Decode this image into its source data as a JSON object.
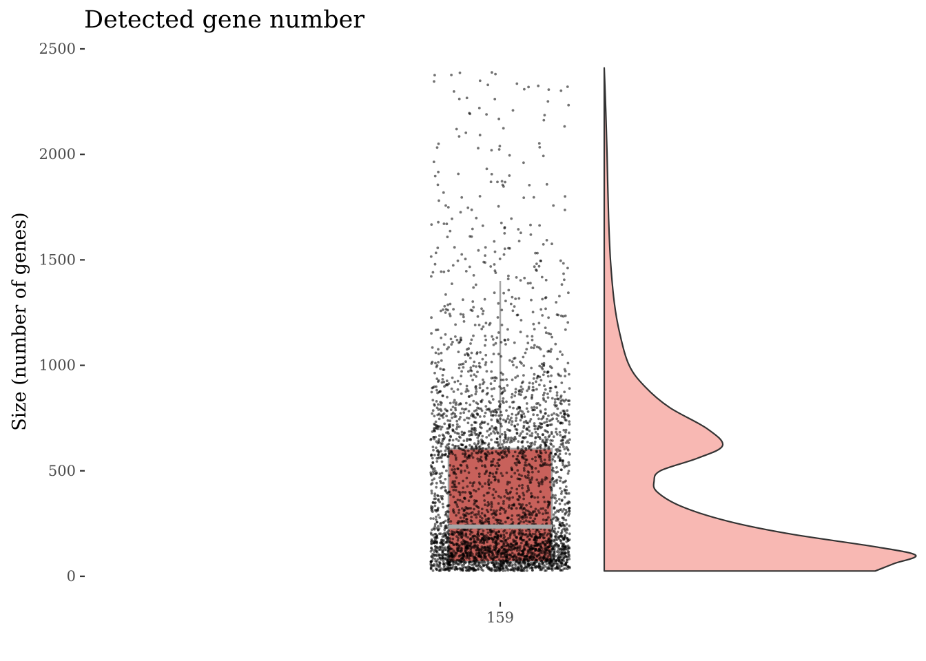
{
  "chart_data": {
    "type": "raincloud",
    "title": "Detected gene number",
    "ylabel": "Size (number of genes)",
    "xlabel": "",
    "categories": [
      "159"
    ],
    "y_ticks": [
      0,
      500,
      1000,
      1500,
      2000,
      2500
    ],
    "ylim": [
      0,
      2500
    ],
    "grid": false,
    "legend": "none",
    "box": {
      "min": 25,
      "q1": 68,
      "median": 236,
      "q3": 605,
      "whisker_high": 1400,
      "fill": "#c8615b",
      "outline": "#a6a6a6"
    },
    "points": {
      "count_approx": 10000,
      "min": 25,
      "max": 2410,
      "color": "#000000",
      "opacity": 0.55
    },
    "density": {
      "fill": "#f8b8b3",
      "outline": "#333333",
      "y": [
        25,
        60,
        100,
        140,
        200,
        260,
        330,
        400,
        450,
        500,
        560,
        620,
        700,
        800,
        900,
        1000,
        1150,
        1300,
        1500,
        1700,
        2000,
        2200,
        2410
      ],
      "relative_density": [
        0.87,
        0.93,
        1.0,
        0.87,
        0.6,
        0.4,
        0.25,
        0.17,
        0.16,
        0.18,
        0.3,
        0.38,
        0.33,
        0.21,
        0.13,
        0.08,
        0.05,
        0.032,
        0.02,
        0.014,
        0.009,
        0.005,
        0.0
      ]
    }
  }
}
